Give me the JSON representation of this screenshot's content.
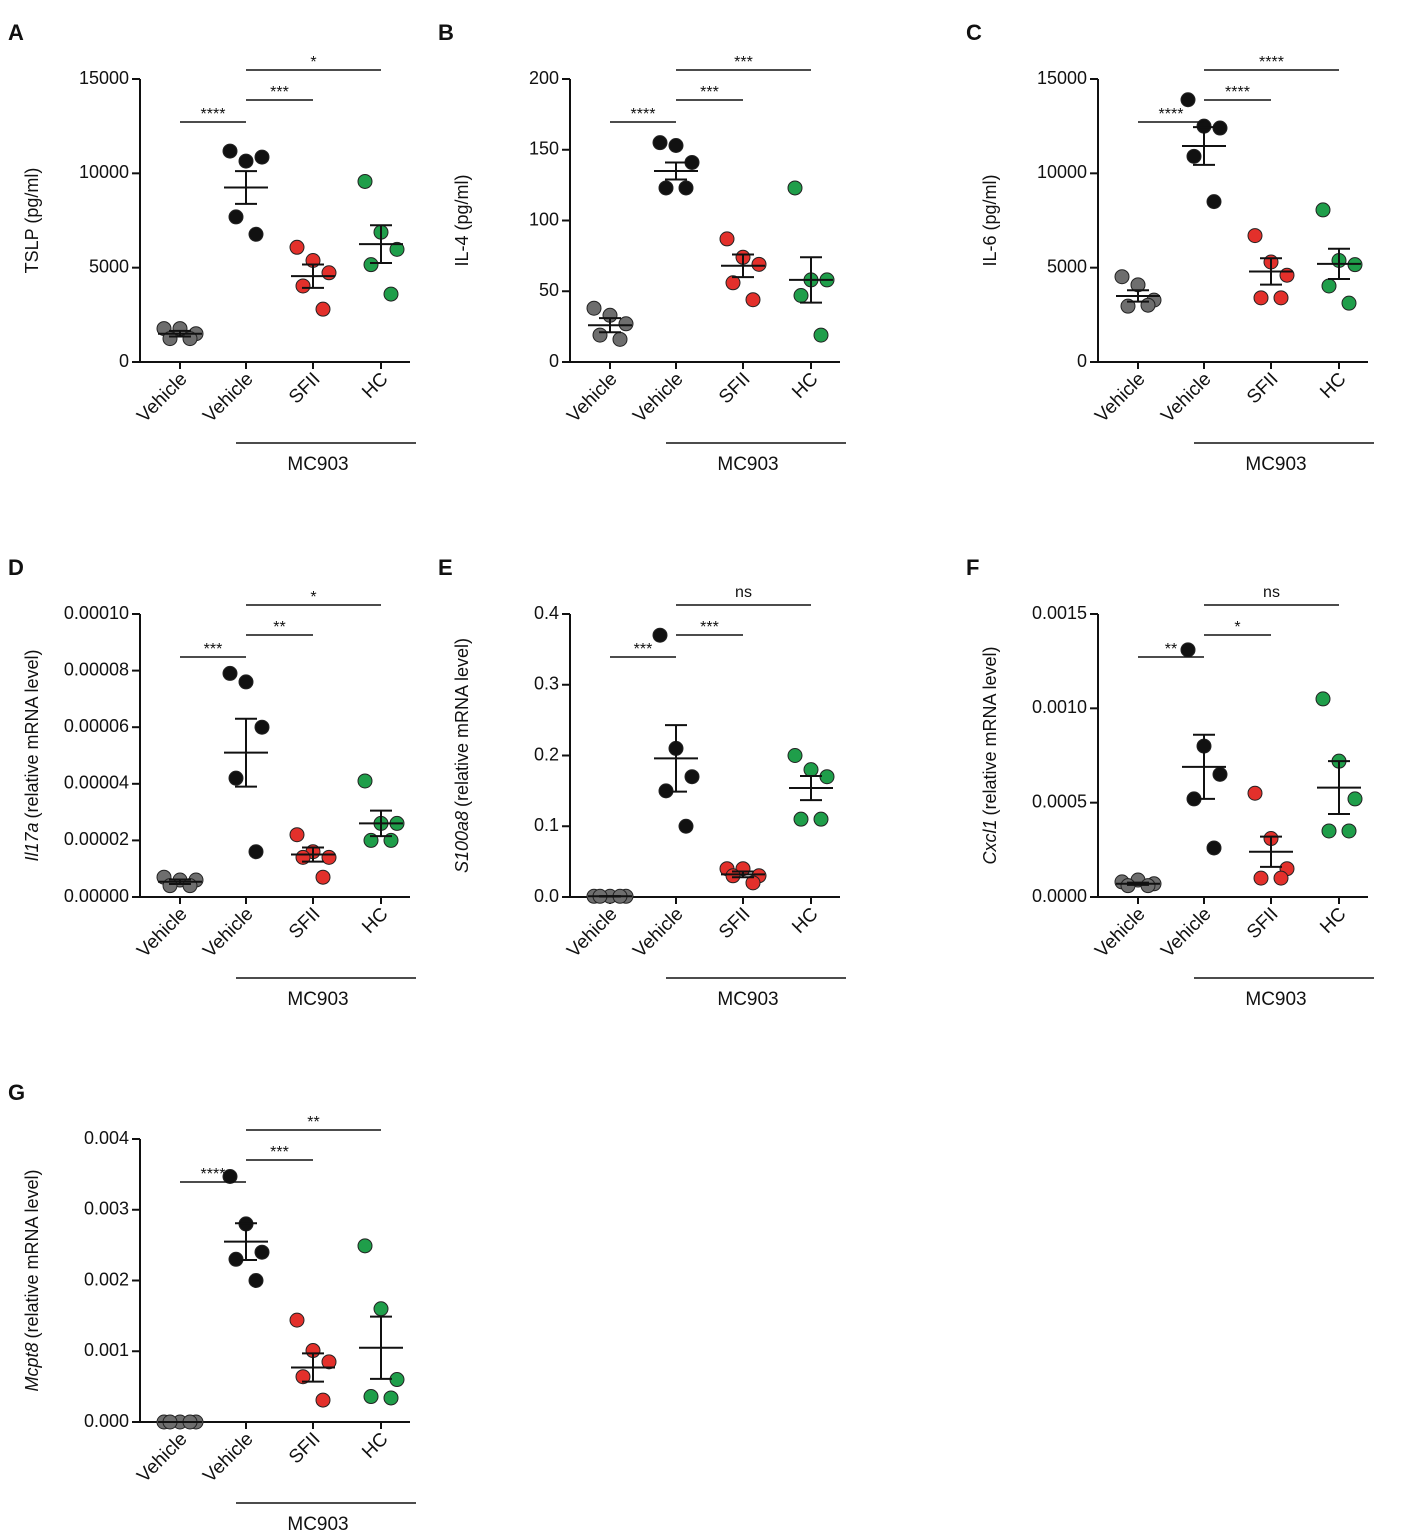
{
  "chart_data": [
    {
      "type": "scatter",
      "panel": "A",
      "ylabel": "TSLP (pg/ml)",
      "categories": [
        "Vehicle",
        "Vehicle",
        "SFII",
        "HC"
      ],
      "group_label": "MC903",
      "colors": [
        "#6e6e6e",
        "#111111",
        "#e3302b",
        "#1f9e4a"
      ],
      "points": [
        [
          1770,
          1770,
          1500,
          1240,
          1240
        ],
        [
          11180,
          10650,
          10860,
          7690,
          6770
        ],
        [
          6080,
          5380,
          4730,
          4030,
          2800
        ],
        [
          9570,
          6880,
          5970,
          5160,
          3600
        ]
      ],
      "mean": [
        1500,
        9250,
        4550,
        6250
      ],
      "sem": [
        150,
        870,
        620,
        1000
      ],
      "ylim": [
        0,
        15000
      ],
      "yticks": [
        0,
        5000,
        10000,
        15000
      ],
      "comparisons": [
        {
          "label": "****",
          "pair": [
            0,
            1
          ]
        },
        {
          "label": "***",
          "pair": [
            1,
            2
          ]
        },
        {
          "label": "*",
          "pair": [
            1,
            3
          ]
        }
      ]
    },
    {
      "type": "scatter",
      "panel": "B",
      "ylabel": "IL-4 (pg/ml)",
      "categories": [
        "Vehicle",
        "Vehicle",
        "SFII",
        "HC"
      ],
      "group_label": "MC903",
      "colors": [
        "#6e6e6e",
        "#111111",
        "#e3302b",
        "#1f9e4a"
      ],
      "points": [
        [
          38,
          33,
          27,
          19,
          16
        ],
        [
          155,
          153,
          141,
          123,
          123
        ],
        [
          87,
          74,
          69,
          56,
          44
        ],
        [
          123,
          58,
          58,
          47,
          19
        ]
      ],
      "mean": [
        26,
        135,
        68,
        58
      ],
      "sem": [
        5,
        6,
        8,
        16
      ],
      "ylim": [
        0,
        200
      ],
      "yticks": [
        0,
        50,
        100,
        150,
        200
      ],
      "comparisons": [
        {
          "label": "****",
          "pair": [
            0,
            1
          ]
        },
        {
          "label": "***",
          "pair": [
            1,
            2
          ]
        },
        {
          "label": "***",
          "pair": [
            1,
            3
          ]
        }
      ]
    },
    {
      "type": "scatter",
      "panel": "C",
      "ylabel": "IL-6 (pg/ml)",
      "categories": [
        "Vehicle",
        "Vehicle",
        "SFII",
        "HC"
      ],
      "group_label": "MC903",
      "colors": [
        "#6e6e6e",
        "#111111",
        "#e3302b",
        "#1f9e4a"
      ],
      "points": [
        [
          4520,
          4090,
          3280,
          2960,
          3010
        ],
        [
          13900,
          12500,
          12400,
          10900,
          8500
        ],
        [
          6700,
          5300,
          4600,
          3400,
          3400
        ],
        [
          8060,
          5380,
          5160,
          4030,
          3120
        ]
      ],
      "mean": [
        3500,
        11450,
        4800,
        5200
      ],
      "sem": [
        300,
        1000,
        700,
        800
      ],
      "ylim": [
        0,
        15000
      ],
      "yticks": [
        0,
        5000,
        10000,
        15000
      ],
      "comparisons": [
        {
          "label": "****",
          "pair": [
            0,
            1
          ]
        },
        {
          "label": "****",
          "pair": [
            1,
            2
          ]
        },
        {
          "label": "****",
          "pair": [
            1,
            3
          ]
        }
      ]
    },
    {
      "type": "scatter",
      "panel": "D",
      "ylabel_italic": "Il17a",
      "ylabel": "(relative mRNA level)",
      "categories": [
        "Vehicle",
        "Vehicle",
        "SFII",
        "HC"
      ],
      "group_label": "MC903",
      "colors": [
        "#6e6e6e",
        "#111111",
        "#e3302b",
        "#1f9e4a"
      ],
      "points": [
        [
          7e-06,
          6e-06,
          6e-06,
          4e-06,
          4e-06
        ],
        [
          7.9e-05,
          7.6e-05,
          6e-05,
          4.2e-05,
          1.6e-05
        ],
        [
          2.2e-05,
          1.6e-05,
          1.4e-05,
          1.4e-05,
          7e-06
        ],
        [
          4.1e-05,
          2.6e-05,
          2.6e-05,
          2e-05,
          2e-05
        ]
      ],
      "mean": [
        5.4e-06,
        5.1e-05,
        1.5e-05,
        2.6e-05
      ],
      "sem": [
        8e-07,
        1.2e-05,
        2.5e-06,
        4.5e-06
      ],
      "ylim": [
        0,
        0.0001
      ],
      "yticks": [
        {
          "value": 0,
          "label": "0.00000"
        },
        {
          "value": 2e-05,
          "label": "0.00002"
        },
        {
          "value": 4e-05,
          "label": "0.00004"
        },
        {
          "value": 6e-05,
          "label": "0.00006"
        },
        {
          "value": 8e-05,
          "label": "0.00008"
        },
        {
          "value": 0.0001,
          "label": "0.00010"
        }
      ],
      "comparisons": [
        {
          "label": "***",
          "pair": [
            0,
            1
          ]
        },
        {
          "label": "**",
          "pair": [
            1,
            2
          ]
        },
        {
          "label": "*",
          "pair": [
            1,
            3
          ]
        }
      ]
    },
    {
      "type": "scatter",
      "panel": "E",
      "ylabel_italic": "S100a8",
      "ylabel": "(relative mRNA level)",
      "categories": [
        "Vehicle",
        "Vehicle",
        "SFII",
        "HC"
      ],
      "group_label": "MC903",
      "colors": [
        "#6e6e6e",
        "#111111",
        "#e3302b",
        "#1f9e4a"
      ],
      "points": [
        [
          0.001,
          0.001,
          0.001,
          0.001,
          0.001
        ],
        [
          0.37,
          0.21,
          0.17,
          0.15,
          0.1
        ],
        [
          0.04,
          0.04,
          0.03,
          0.03,
          0.02
        ],
        [
          0.2,
          0.18,
          0.17,
          0.11,
          0.11
        ]
      ],
      "mean": [
        0.001,
        0.196,
        0.032,
        0.154
      ],
      "sem": [
        0.0003,
        0.047,
        0.004,
        0.017
      ],
      "ylim": [
        0,
        0.4
      ],
      "yticks": [
        {
          "value": 0,
          "label": "0.0"
        },
        0.1,
        0.2,
        0.3,
        0.4
      ],
      "comparisons": [
        {
          "label": "***",
          "pair": [
            0,
            1
          ]
        },
        {
          "label": "***",
          "pair": [
            1,
            2
          ]
        },
        {
          "label": "ns",
          "pair": [
            1,
            3
          ]
        }
      ]
    },
    {
      "type": "scatter",
      "panel": "F",
      "ylabel_italic": "Cxcl1",
      "ylabel": "(relative mRNA level)",
      "categories": [
        "Vehicle",
        "Vehicle",
        "SFII",
        "HC"
      ],
      "group_label": "MC903",
      "colors": [
        "#6e6e6e",
        "#111111",
        "#e3302b",
        "#1f9e4a"
      ],
      "points": [
        [
          8e-05,
          9e-05,
          7e-05,
          6e-05,
          6e-05
        ],
        [
          0.00131,
          0.0008,
          0.00065,
          0.00052,
          0.00026
        ],
        [
          0.00055,
          0.00031,
          0.00015,
          0.0001,
          0.0001
        ],
        [
          0.00105,
          0.00072,
          0.00052,
          0.00035,
          0.00035
        ]
      ],
      "mean": [
        7e-05,
        0.00069,
        0.00024,
        0.00058
      ],
      "sem": [
        6e-06,
        0.00017,
        8e-05,
        0.00014
      ],
      "ylim": [
        0,
        0.0015
      ],
      "yticks": [
        {
          "value": 0,
          "label": "0.0000"
        },
        0.0005,
        {
          "value": 0.001,
          "label": "0.0010"
        },
        {
          "value": 0.0015,
          "label": "0.0015"
        }
      ],
      "comparisons": [
        {
          "label": "**",
          "pair": [
            0,
            1
          ]
        },
        {
          "label": "*",
          "pair": [
            1,
            2
          ]
        },
        {
          "label": "ns",
          "pair": [
            1,
            3
          ]
        }
      ]
    },
    {
      "type": "scatter",
      "panel": "G",
      "ylabel_italic": "Mcpt8",
      "ylabel": "(relative mRNA level)",
      "categories": [
        "Vehicle",
        "Vehicle",
        "SFII",
        "HC"
      ],
      "group_label": "MC903",
      "colors": [
        "#6e6e6e",
        "#111111",
        "#e3302b",
        "#1f9e4a"
      ],
      "points": [
        [
          0,
          0,
          0,
          0,
          0
        ],
        [
          0.00347,
          0.0028,
          0.0024,
          0.0023,
          0.002
        ],
        [
          0.00144,
          0.00101,
          0.00085,
          0.00064,
          0.00031
        ],
        [
          0.00249,
          0.0016,
          0.0006,
          0.00036,
          0.00034
        ]
      ],
      "mean": [
        0,
        0.00255,
        0.00077,
        0.00105
      ],
      "sem": [
        0,
        0.00026,
        0.0002,
        0.00044
      ],
      "ylim": [
        0,
        0.004
      ],
      "yticks": [
        {
          "value": 0,
          "label": "0.000"
        },
        0.001,
        0.002,
        0.003,
        0.004
      ],
      "comparisons": [
        {
          "label": "****",
          "pair": [
            0,
            1
          ]
        },
        {
          "label": "***",
          "pair": [
            1,
            2
          ]
        },
        {
          "label": "**",
          "pair": [
            1,
            3
          ]
        }
      ]
    }
  ]
}
